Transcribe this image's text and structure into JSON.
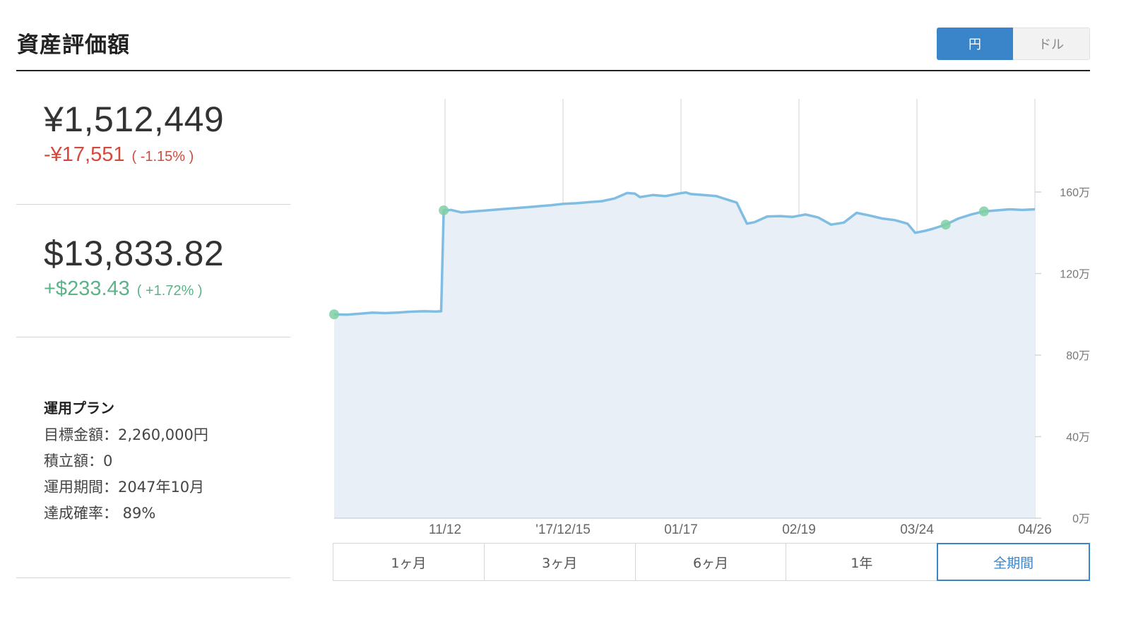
{
  "header": {
    "title": "資産評価額"
  },
  "currency_toggle": {
    "yen_label": "円",
    "dollar_label": "ドル",
    "selected": "円"
  },
  "yen": {
    "value": "¥1,512,449",
    "change": "-¥17,551",
    "change_pct": "( -1.15% )"
  },
  "usd": {
    "value": "$13,833.82",
    "change": "+$233.43",
    "change_pct": "( +1.72% )"
  },
  "plan": {
    "title": "運用プラン",
    "target": "目標金額：2,260,000円",
    "monthly": "積立額：0",
    "period": "運用期間：2047年10月",
    "probability": "達成確率： 89%"
  },
  "range_buttons": [
    "1ヶ月",
    "3ヶ月",
    "6ヶ月",
    "1年",
    "全期間"
  ],
  "range_selected": "全期間",
  "colors": {
    "accent": "#3a84c9",
    "line": "#7fbde3",
    "area": "#e9eff6",
    "negative": "#d34a3c",
    "positive": "#5cb388",
    "marker": "#7fcfa4"
  },
  "chart_data": {
    "type": "area",
    "x_tick_labels": [
      "11/12",
      "'17/12/15",
      "01/17",
      "02/19",
      "03/24",
      "04/26"
    ],
    "y_tick_labels": [
      "0万",
      "40万",
      "80万",
      "120万",
      "160万"
    ],
    "ylim": [
      0,
      1600000
    ],
    "grid": "vertical",
    "series": [
      {
        "values": [
          [
            0,
            1000000
          ],
          [
            5,
            998000
          ],
          [
            10,
            1003000
          ],
          [
            15,
            1008000
          ],
          [
            20,
            1006000
          ],
          [
            25,
            1009000
          ],
          [
            30,
            1013000
          ],
          [
            35,
            1015000
          ],
          [
            40,
            1014000
          ],
          [
            42,
            1015000
          ],
          [
            43,
            1510000
          ],
          [
            46,
            1512000
          ],
          [
            50,
            1500000
          ],
          [
            55,
            1505000
          ],
          [
            60,
            1510000
          ],
          [
            65,
            1515000
          ],
          [
            70,
            1520000
          ],
          [
            75,
            1525000
          ],
          [
            80,
            1530000
          ],
          [
            85,
            1535000
          ],
          [
            90,
            1542000
          ],
          [
            95,
            1545000
          ],
          [
            100,
            1550000
          ],
          [
            105,
            1555000
          ],
          [
            110,
            1568000
          ],
          [
            115,
            1595000
          ],
          [
            118,
            1592000
          ],
          [
            120,
            1575000
          ],
          [
            125,
            1585000
          ],
          [
            130,
            1580000
          ],
          [
            135,
            1592000
          ],
          [
            138,
            1598000
          ],
          [
            140,
            1590000
          ],
          [
            145,
            1585000
          ],
          [
            150,
            1580000
          ],
          [
            155,
            1560000
          ],
          [
            158,
            1548000
          ],
          [
            160,
            1495000
          ],
          [
            162,
            1445000
          ],
          [
            165,
            1452000
          ],
          [
            170,
            1480000
          ],
          [
            175,
            1482000
          ],
          [
            180,
            1478000
          ],
          [
            185,
            1490000
          ],
          [
            190,
            1475000
          ],
          [
            195,
            1440000
          ],
          [
            200,
            1450000
          ],
          [
            205,
            1498000
          ],
          [
            210,
            1485000
          ],
          [
            215,
            1470000
          ],
          [
            220,
            1462000
          ],
          [
            225,
            1445000
          ],
          [
            228,
            1400000
          ],
          [
            232,
            1410000
          ],
          [
            235,
            1420000
          ],
          [
            240,
            1440000
          ],
          [
            245,
            1470000
          ],
          [
            250,
            1490000
          ],
          [
            255,
            1505000
          ],
          [
            260,
            1510000
          ],
          [
            265,
            1515000
          ],
          [
            270,
            1512000
          ],
          [
            275,
            1515000
          ]
        ]
      }
    ],
    "markers": [
      [
        0,
        1000000
      ],
      [
        43,
        1510000
      ],
      [
        240,
        1440000
      ],
      [
        255,
        1505000
      ]
    ]
  }
}
